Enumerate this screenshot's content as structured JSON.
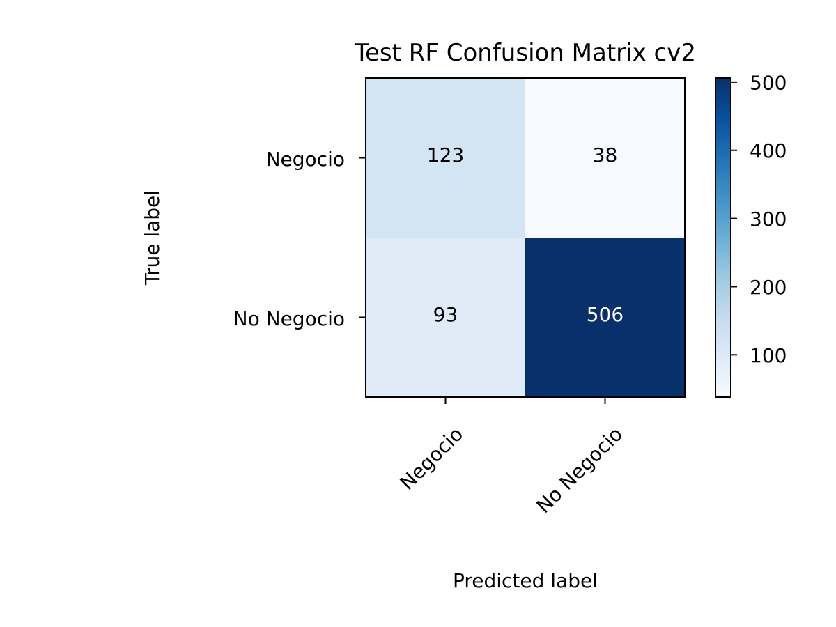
{
  "chart_data": {
    "type": "heatmap",
    "title": "Test RF Confusion Matrix cv2",
    "xlabel": "Predicted label",
    "ylabel": "True label",
    "x_categories": [
      "Negocio",
      "No Negocio"
    ],
    "y_categories": [
      "Negocio",
      "No Negocio"
    ],
    "values": [
      [
        123,
        38
      ],
      [
        93,
        506
      ]
    ],
    "colormap": "Blues",
    "colorbar": {
      "range": [
        38,
        506
      ],
      "ticks": [
        100,
        200,
        300,
        400,
        500
      ]
    },
    "colors": {
      "low": "#f7fbff",
      "high": "#08306b",
      "light_text": "#ffffff",
      "dark_text": "#000000"
    }
  }
}
